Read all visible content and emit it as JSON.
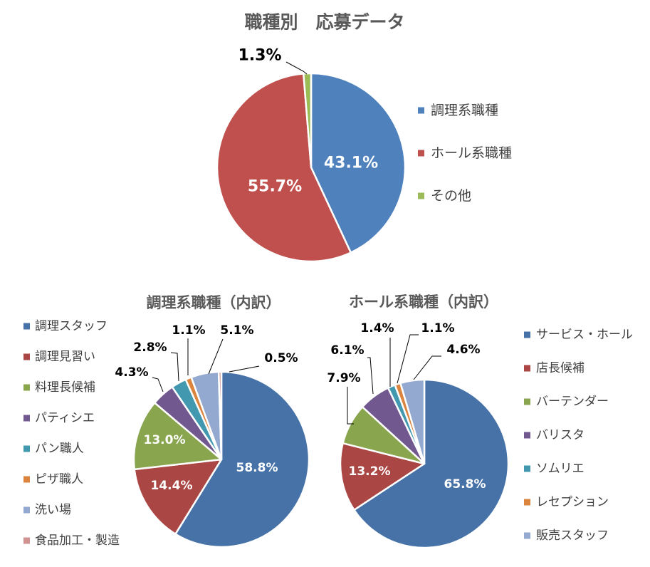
{
  "chart_data": [
    {
      "type": "pie",
      "title": "職種別　応募データ",
      "legend_position": "right",
      "categories": [
        "調理系職種",
        "ホール系職種",
        "その他"
      ],
      "values": [
        43.1,
        55.7,
        1.3
      ],
      "data_labels": [
        "43.1%",
        "55.7%",
        "1.3%"
      ],
      "colors": [
        "#4F81BD",
        "#C0504D",
        "#9BBB59"
      ]
    },
    {
      "type": "pie",
      "title": "調理系職種（内訳）",
      "legend_position": "left",
      "categories": [
        "調理スタッフ",
        "調理見習い",
        "料理長候補",
        "パティシエ",
        "パン職人",
        "ピザ職人",
        "洗い場",
        "食品加工・製造"
      ],
      "values": [
        58.8,
        14.4,
        13.0,
        4.3,
        2.8,
        1.1,
        5.1,
        0.5
      ],
      "data_labels": [
        "58.8%",
        "14.4%",
        "13.0%",
        "4.3%",
        "2.8%",
        "1.1%",
        "5.1%",
        "0.5%"
      ],
      "colors": [
        "#4672A8",
        "#AA4643",
        "#89A54E",
        "#71588F",
        "#4198AF",
        "#DB843D",
        "#93A9CF",
        "#D19392"
      ]
    },
    {
      "type": "pie",
      "title": "ホール系職種（内訳）",
      "legend_position": "right",
      "categories": [
        "サービス・ホール",
        "店長候補",
        "バーテンダー",
        "バリスタ",
        "ソムリエ",
        "レセプション",
        "販売スタッフ"
      ],
      "values": [
        65.8,
        13.2,
        7.9,
        6.1,
        1.4,
        1.1,
        4.6
      ],
      "data_labels": [
        "65.8%",
        "13.2%",
        "7.9%",
        "6.1%",
        "1.4%",
        "1.1%",
        "4.6%"
      ],
      "colors": [
        "#4672A8",
        "#AA4643",
        "#89A54E",
        "#71588F",
        "#4198AF",
        "#DB843D",
        "#93A9CF"
      ]
    }
  ]
}
